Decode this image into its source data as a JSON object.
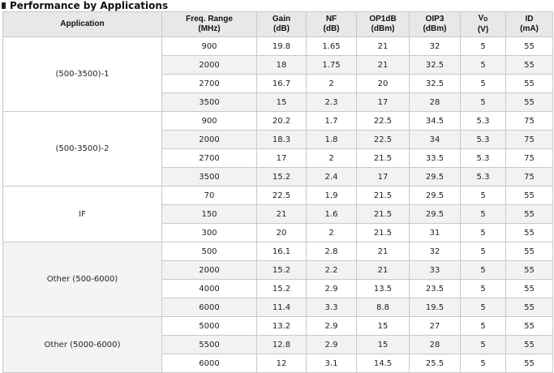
{
  "title": "Performance by Applications",
  "columns": [
    {
      "line1": "Application",
      "line2": ""
    },
    {
      "line1": "Freq. Range",
      "line2": "(MHz)"
    },
    {
      "line1": "Gain",
      "line2": "(dB)"
    },
    {
      "line1": "NF",
      "line2": "(dB)"
    },
    {
      "line1": "OP1dB",
      "line2": "(dBm)"
    },
    {
      "line1": "OIP3",
      "line2": "(dBm)"
    },
    {
      "line1": "V",
      "sub": "D",
      "line2": "(V)"
    },
    {
      "line1": "ID",
      "line2": "(mA)"
    }
  ],
  "groups": [
    {
      "application": "(500-3500)-1",
      "rows": [
        [
          "900",
          "19.8",
          "1.65",
          "21",
          "32",
          "5",
          "55"
        ],
        [
          "2000",
          "18",
          "1.75",
          "21",
          "32.5",
          "5",
          "55"
        ],
        [
          "2700",
          "16.7",
          "2",
          "20",
          "32.5",
          "5",
          "55"
        ],
        [
          "3500",
          "15",
          "2.3",
          "17",
          "28",
          "5",
          "55"
        ]
      ]
    },
    {
      "application": "(500-3500)-2",
      "rows": [
        [
          "900",
          "20.2",
          "1.7",
          "22.5",
          "34.5",
          "5.3",
          "75"
        ],
        [
          "2000",
          "18.3",
          "1.8",
          "22.5",
          "34",
          "5.3",
          "75"
        ],
        [
          "2700",
          "17",
          "2",
          "21.5",
          "33.5",
          "5.3",
          "75"
        ],
        [
          "3500",
          "15.2",
          "2.4",
          "17",
          "29.5",
          "5.3",
          "75"
        ]
      ]
    },
    {
      "application": "IF",
      "rows": [
        [
          "70",
          "22.5",
          "1.9",
          "21.5",
          "29.5",
          "5",
          "55"
        ],
        [
          "150",
          "21",
          "1.6",
          "21.5",
          "29.5",
          "5",
          "55"
        ],
        [
          "300",
          "20",
          "2",
          "21.5",
          "31",
          "5",
          "55"
        ]
      ]
    },
    {
      "application": "Other (500-6000)",
      "rows": [
        [
          "500",
          "16.1",
          "2.8",
          "21",
          "32",
          "5",
          "55"
        ],
        [
          "2000",
          "15.2",
          "2.2",
          "21",
          "33",
          "5",
          "55"
        ],
        [
          "4000",
          "15.2",
          "2.9",
          "13.5",
          "23.5",
          "5",
          "55"
        ],
        [
          "6000",
          "11.4",
          "3.3",
          "8.8",
          "19.5",
          "5",
          "55"
        ]
      ]
    },
    {
      "application": "Other (5000-6000)",
      "rows": [
        [
          "5000",
          "13.2",
          "2.9",
          "15",
          "27",
          "5",
          "55"
        ],
        [
          "5500",
          "12.8",
          "2.9",
          "15",
          "28",
          "5",
          "55"
        ],
        [
          "6000",
          "12",
          "3.1",
          "14.5",
          "25.5",
          "5",
          "55"
        ]
      ]
    }
  ]
}
